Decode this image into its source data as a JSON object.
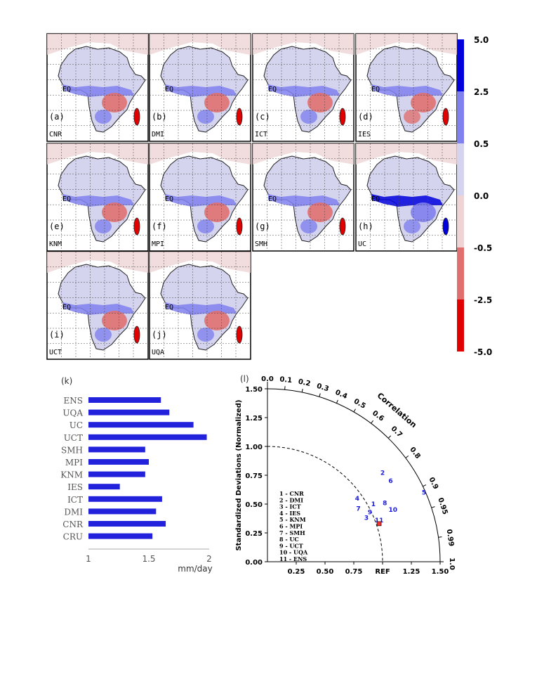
{
  "colorbar": {
    "colors": [
      "#0000dd",
      "#8080ee",
      "#d4d4ee",
      "#eed4d4",
      "#e07070",
      "#e00000"
    ],
    "ticks": [
      "5.0",
      "2.5",
      "0.5",
      "0.0",
      "-0.5",
      "-2.5",
      "-5.0"
    ]
  },
  "maps": {
    "eq_label": "EQ",
    "panels": [
      {
        "letter": "(a)",
        "model": "CNR"
      },
      {
        "letter": "(b)",
        "model": "DMI"
      },
      {
        "letter": "(c)",
        "model": "ICT"
      },
      {
        "letter": "(d)",
        "model": "IES"
      },
      {
        "letter": "(e)",
        "model": "KNM"
      },
      {
        "letter": "(f)",
        "model": "MPI"
      },
      {
        "letter": "(g)",
        "model": "SMH"
      },
      {
        "letter": "(h)",
        "model": "UC"
      },
      {
        "letter": "(i)",
        "model": "UCT"
      },
      {
        "letter": "(j)",
        "model": "UQA"
      }
    ]
  },
  "chart_data": [
    {
      "type": "bar",
      "panel_label": "(k)",
      "categories": [
        "ENS",
        "UQA",
        "UC",
        "UCT",
        "SMH",
        "MPI",
        "KNM",
        "IES",
        "ICT",
        "DMI",
        "CNR",
        "CRU"
      ],
      "values": [
        1.6,
        1.67,
        1.87,
        1.98,
        1.47,
        1.5,
        1.47,
        1.26,
        1.61,
        1.56,
        1.64,
        1.53
      ],
      "xlim": [
        1,
        2
      ],
      "xticks": [
        "1",
        "1.5",
        "2"
      ],
      "xlabel": "mm/day",
      "bar_color": "#2222dd",
      "label_color": "#555555"
    },
    {
      "type": "scatter",
      "panel_label": "(l)",
      "subtype": "taylor",
      "ylabel": "Standardized Deviations (Normalized)",
      "yticks": [
        "0.00",
        "0.25",
        "0.50",
        "0.75",
        "1.00",
        "1.25",
        "1.50"
      ],
      "xticks": [
        "0.25",
        "0.50",
        "0.75",
        "REF",
        "1.25",
        "1.50"
      ],
      "corr_label": "Correlation",
      "corr_ticks": [
        "0.0",
        "0.1",
        "0.2",
        "0.3",
        "0.4",
        "0.5",
        "0.6",
        "0.7",
        "0.8",
        "0.9",
        "0.95",
        "0.99",
        "1.0"
      ],
      "points": [
        {
          "id": "1",
          "x": 0.92,
          "y": 0.5
        },
        {
          "id": "2",
          "x": 1.0,
          "y": 0.77
        },
        {
          "id": "3",
          "x": 0.86,
          "y": 0.38
        },
        {
          "id": "4",
          "x": 0.78,
          "y": 0.55
        },
        {
          "id": "5",
          "x": 1.36,
          "y": 0.6
        },
        {
          "id": "6",
          "x": 1.07,
          "y": 0.7
        },
        {
          "id": "7",
          "x": 0.79,
          "y": 0.46
        },
        {
          "id": "8",
          "x": 1.02,
          "y": 0.51
        },
        {
          "id": "9",
          "x": 0.89,
          "y": 0.43
        },
        {
          "id": "10",
          "x": 1.09,
          "y": 0.45
        },
        {
          "id": "11",
          "x": 0.97,
          "y": 0.36
        }
      ],
      "ref_point": {
        "x": 0.97,
        "y": 0.33
      },
      "legend": [
        "1 - CNR",
        "2 - DMI",
        "3 - ICT",
        "4 - IES",
        "5 - KNM",
        "6 - MPI",
        "7 - SMH",
        "8 - UC",
        "9 - UCT",
        "10 - UQA",
        "11 - ENS"
      ],
      "legend_position": "lower-left"
    }
  ]
}
